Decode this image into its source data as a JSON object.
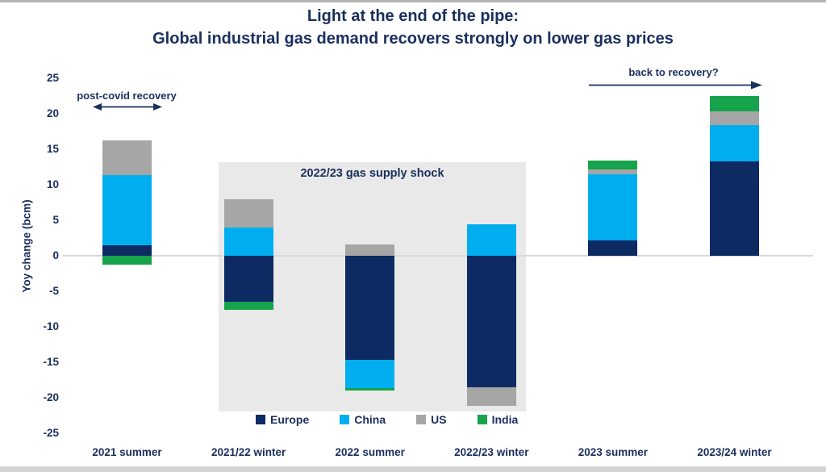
{
  "title": {
    "line1": "Light at the end of the pipe:",
    "line2": "Global industrial gas demand recovers strongly on lower gas prices"
  },
  "annotations": {
    "post_covid": "post-covid recovery",
    "back_to_recovery": "back to recovery?",
    "supply_shock": "2022/23 gas supply shock"
  },
  "colors": {
    "text_navy": "#1a2f5e",
    "europe": "#0e2a63",
    "china": "#00aeef",
    "us": "#a6a6a6",
    "india": "#17a34b",
    "shock_box": "#e9e9e9",
    "zero_gridline": "#d9d9d9"
  },
  "chart_data": {
    "type": "bar",
    "stacked": true,
    "title": "Light at the end of the pipe: Global industrial gas demand recovers strongly on lower gas prices",
    "categories": [
      "2021 summer",
      "2021/22 winter",
      "2022 summer",
      "2022/23 winter",
      "2023 summer",
      "2023/24 winter"
    ],
    "series": [
      {
        "name": "Europe",
        "color": "#0e2a63",
        "values": [
          1.5,
          -6.5,
          -14.7,
          -18.5,
          2.2,
          13.3
        ]
      },
      {
        "name": "China",
        "color": "#00aeef",
        "values": [
          9.9,
          4.0,
          -3.9,
          4.4,
          9.3,
          5.1
        ]
      },
      {
        "name": "US",
        "color": "#a6a6a6",
        "values": [
          4.9,
          4.0,
          1.6,
          -2.6,
          0.7,
          1.9
        ]
      },
      {
        "name": "India",
        "color": "#17a34b",
        "values": [
          -1.3,
          -1.1,
          -0.4,
          0.0,
          1.2,
          2.2
        ]
      }
    ],
    "xlabel": "",
    "ylabel": "Yoy change (bcm)",
    "ylim": [
      -25,
      25
    ],
    "ytick_step": 5,
    "grid": "zero-line-only",
    "legend_position": "bottom",
    "shock_band_categories": [
      "2021/22 winter",
      "2022 summer",
      "2022/23 winter"
    ],
    "bar_totals": [
      16.3,
      8.0,
      1.6,
      4.4,
      13.4,
      22.5
    ],
    "bar_total_negatives": [
      -1.3,
      -7.6,
      -19.0,
      -21.1,
      0,
      0
    ]
  }
}
